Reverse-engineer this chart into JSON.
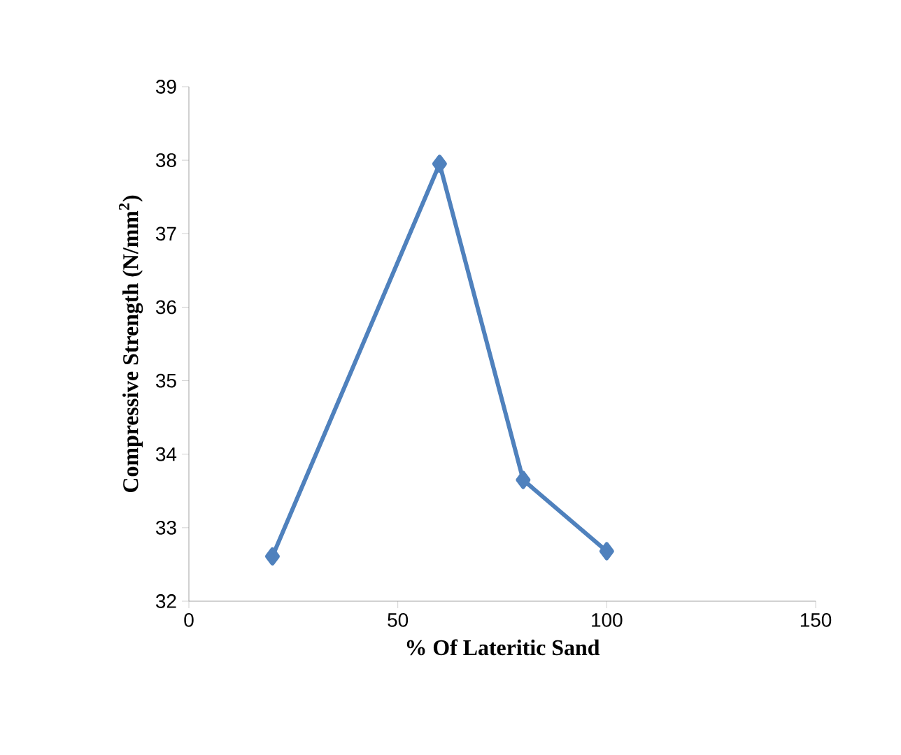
{
  "chart_data": {
    "type": "line",
    "xlabel": "% Of Lateritic Sand",
    "ylabel": "Compressive Strength (N/mm$^{2}$)",
    "x": [
      20,
      60,
      80,
      100
    ],
    "series": [
      {
        "color": "#4f81bd",
        "values": [
          32.61,
          37.95,
          33.65,
          32.68
        ]
      }
    ],
    "xlim": [
      0,
      150
    ],
    "xticks": [
      0,
      50,
      100,
      150
    ],
    "ylim": [
      32,
      39
    ],
    "yticks": [
      32,
      33,
      34,
      35,
      36,
      37,
      38,
      39
    ],
    "marker": "diamond",
    "line_style": "solid"
  }
}
